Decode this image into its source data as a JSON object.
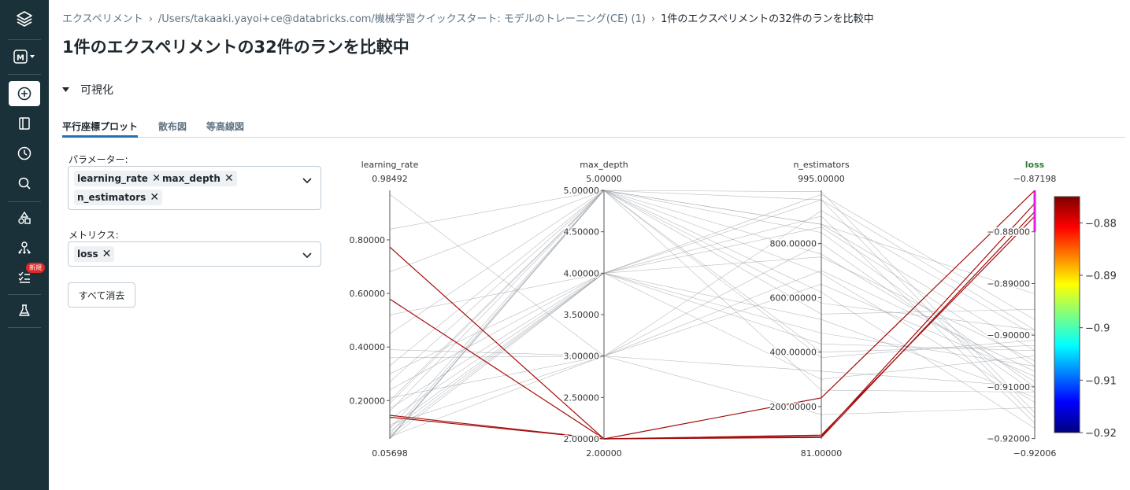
{
  "breadcrumb": {
    "items": [
      "エクスペリメント",
      "/Users/takaaki.yayoi+ce@databricks.com/機械学習クイックスタート: モデルのトレーニング(CE) (1)"
    ],
    "current": "1件のエクスペリメントの32件のランを比較中"
  },
  "page_title": "1件のエクスペリメントの32件のランを比較中",
  "section": {
    "label": "可視化"
  },
  "tabs": [
    "平行座標プロット",
    "散布図",
    "等高線図"
  ],
  "sidebar": {
    "badge": "新規"
  },
  "params": {
    "label": "パラメーター:",
    "chips": [
      "learning_rate",
      "max_depth",
      "n_estimators"
    ]
  },
  "metrics": {
    "label": "メトリクス:",
    "chips": [
      "loss"
    ]
  },
  "clear_button": "すべて消去",
  "chart_data": {
    "type": "parallel_coordinates",
    "axes": [
      {
        "name": "learning_rate",
        "min": 0.05698,
        "max": 0.98492,
        "top_label": "0.98492",
        "bottom_label": "0.05698",
        "ticks": [
          {
            "v": 0.8,
            "label": "0.80000"
          },
          {
            "v": 0.6,
            "label": "0.60000"
          },
          {
            "v": 0.4,
            "label": "0.40000"
          },
          {
            "v": 0.2,
            "label": "0.20000"
          }
        ]
      },
      {
        "name": "max_depth",
        "min": 2,
        "max": 5,
        "top_label": "5.00000",
        "bottom_label": "2.00000",
        "ticks": [
          {
            "v": 5,
            "label": "5.00000"
          },
          {
            "v": 4.5,
            "label": "4.50000"
          },
          {
            "v": 4,
            "label": "4.00000"
          },
          {
            "v": 3.5,
            "label": "3.50000"
          },
          {
            "v": 3,
            "label": "3.00000"
          },
          {
            "v": 2.5,
            "label": "2.50000"
          },
          {
            "v": 2,
            "label": "2.00000"
          }
        ]
      },
      {
        "name": "n_estimators",
        "min": 81,
        "max": 995,
        "top_label": "995.00000",
        "bottom_label": "81.00000",
        "ticks": [
          {
            "v": 800,
            "label": "800.00000"
          },
          {
            "v": 600,
            "label": "600.00000"
          },
          {
            "v": 400,
            "label": "400.00000"
          },
          {
            "v": 200,
            "label": "200.00000"
          }
        ]
      },
      {
        "name": "loss",
        "min": -0.92006,
        "max": -0.87198,
        "top_label": "−0.87198",
        "bottom_label": "−0.92006",
        "ticks": [
          {
            "v": -0.88,
            "label": "−0.88000"
          },
          {
            "v": -0.89,
            "label": "−0.89000"
          },
          {
            "v": -0.9,
            "label": "−0.90000"
          },
          {
            "v": -0.91,
            "label": "−0.91000"
          },
          {
            "v": -0.92,
            "label": "−0.92000"
          }
        ]
      }
    ],
    "highlight_range": {
      "axis": "loss",
      "from": -0.88,
      "to": -0.87198
    },
    "colorscale": {
      "min": -0.92,
      "max": -0.875,
      "ticks": [
        {
          "v": -0.88,
          "label": "−0.88"
        },
        {
          "v": -0.89,
          "label": "−0.89"
        },
        {
          "v": -0.9,
          "label": "−0.9"
        },
        {
          "v": -0.91,
          "label": "−0.91"
        },
        {
          "v": -0.92,
          "label": "−0.92"
        }
      ]
    },
    "runs": [
      {
        "lr": 0.7733,
        "md": 2,
        "ne": 90,
        "loss": -0.8745
      },
      {
        "lr": 0.5792,
        "md": 2,
        "ne": 86,
        "loss": -0.8761
      },
      {
        "lr": 0.145,
        "md": 2,
        "ne": 232,
        "loss": -0.872
      },
      {
        "lr": 0.138,
        "md": 2,
        "ne": 95,
        "loss": -0.877
      },
      {
        "lr": 0.84,
        "md": 5,
        "ne": 960,
        "loss": -0.899
      },
      {
        "lr": 0.68,
        "md": 5,
        "ne": 870,
        "loss": -0.903
      },
      {
        "lr": 0.52,
        "md": 4,
        "ne": 750,
        "loss": -0.905
      },
      {
        "lr": 0.45,
        "md": 5,
        "ne": 840,
        "loss": -0.91
      },
      {
        "lr": 0.39,
        "md": 3,
        "ne": 650,
        "loss": -0.908
      },
      {
        "lr": 0.33,
        "md": 5,
        "ne": 380,
        "loss": -0.901
      },
      {
        "lr": 0.3,
        "md": 4,
        "ne": 520,
        "loss": -0.912
      },
      {
        "lr": 0.27,
        "md": 5,
        "ne": 990,
        "loss": -0.915
      },
      {
        "lr": 0.24,
        "md": 4,
        "ne": 470,
        "loss": -0.906
      },
      {
        "lr": 0.21,
        "md": 3,
        "ne": 330,
        "loss": -0.91
      },
      {
        "lr": 0.19,
        "md": 5,
        "ne": 580,
        "loss": -0.899
      },
      {
        "lr": 0.17,
        "md": 4,
        "ne": 900,
        "loss": -0.917
      },
      {
        "lr": 0.16,
        "md": 5,
        "ne": 690,
        "loss": -0.913
      },
      {
        "lr": 0.13,
        "md": 4,
        "ne": 430,
        "loss": -0.903
      },
      {
        "lr": 0.11,
        "md": 3,
        "ne": 800,
        "loss": -0.911
      },
      {
        "lr": 0.095,
        "md": 5,
        "ne": 870,
        "loss": -0.892
      },
      {
        "lr": 0.085,
        "md": 4,
        "ne": 300,
        "loss": -0.904
      },
      {
        "lr": 0.075,
        "md": 5,
        "ne": 620,
        "loss": -0.918
      },
      {
        "lr": 0.07,
        "md": 4,
        "ne": 980,
        "loss": -0.897
      },
      {
        "lr": 0.065,
        "md": 3,
        "ne": 170,
        "loss": -0.914
      },
      {
        "lr": 0.062,
        "md": 5,
        "ne": 760,
        "loss": -0.909
      },
      {
        "lr": 0.06,
        "md": 5,
        "ne": 400,
        "loss": -0.902
      },
      {
        "lr": 0.058,
        "md": 4,
        "ne": 960,
        "loss": -0.916
      },
      {
        "lr": 0.057,
        "md": 5,
        "ne": 540,
        "loss": -0.895
      },
      {
        "lr": 0.97,
        "md": 3,
        "ne": 700,
        "loss": -0.907
      },
      {
        "lr": 0.36,
        "md": 3,
        "ne": 920,
        "loss": -0.9
      },
      {
        "lr": 0.2,
        "md": 5,
        "ne": 260,
        "loss": -0.911
      },
      {
        "lr": 0.1,
        "md": 4,
        "ne": 860,
        "loss": -0.906
      }
    ]
  }
}
